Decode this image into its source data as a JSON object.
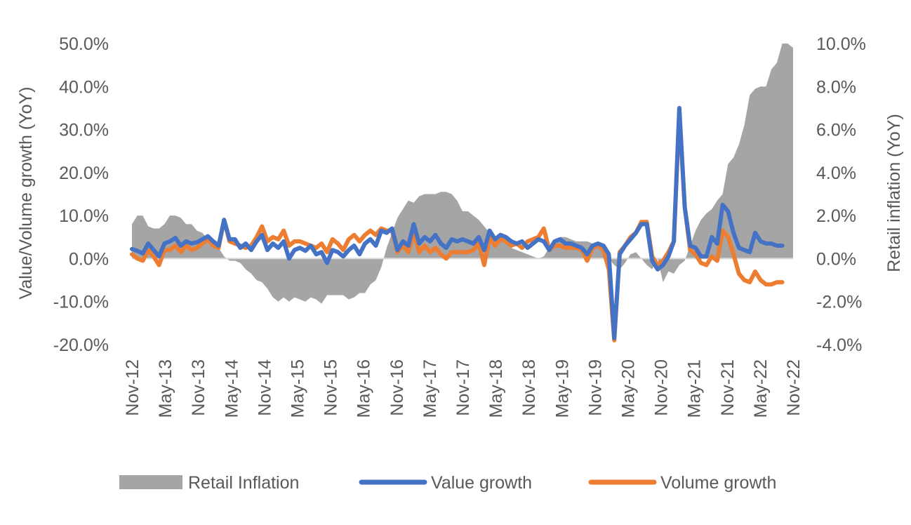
{
  "chart_data": {
    "type": "line",
    "x_labels": [
      "Nov-12",
      "May-13",
      "Nov-13",
      "May-14",
      "Nov-14",
      "May-15",
      "Nov-15",
      "May-16",
      "Nov-16",
      "May-17",
      "Nov-17",
      "May-18",
      "Nov-18",
      "May-19",
      "Nov-19",
      "May-20",
      "Nov-20",
      "May-21",
      "Nov-21",
      "May-22",
      "Nov-22"
    ],
    "y_left": {
      "label": "Value/Volume  growth (YoY)",
      "ylim": [
        -20,
        50
      ],
      "ticks": [
        "-20.0%",
        "-10.0%",
        "0.0%",
        "10.0%",
        "20.0%",
        "30.0%",
        "40.0%",
        "50.0%"
      ]
    },
    "y_right": {
      "label": "Retail inflation (YoY)",
      "ylim": [
        -4,
        10
      ],
      "ticks": [
        "-4.0%",
        "-2.0%",
        "0.0%",
        "2.0%",
        "4.0%",
        "6.0%",
        "8.0%",
        "10.0%"
      ]
    },
    "legend_position": "bottom",
    "series": [
      {
        "name": "Retail Inflation",
        "kind": "area",
        "axis": "right",
        "color": "#a5a5a5",
        "values": [
          1.6,
          2.0,
          2.0,
          1.5,
          1.4,
          1.4,
          1.6,
          2.0,
          2.0,
          1.9,
          1.6,
          1.6,
          1.3,
          1.2,
          0.9,
          0.8,
          0.5,
          0.1,
          -0.1,
          -0.1,
          -0.2,
          -0.5,
          -0.7,
          -1.0,
          -1.1,
          -1.4,
          -1.8,
          -2.0,
          -1.8,
          -2.0,
          -1.8,
          -1.9,
          -2.0,
          -1.8,
          -1.9,
          -2.1,
          -1.7,
          -1.7,
          -1.7,
          -1.7,
          -1.9,
          -1.8,
          -1.6,
          -1.6,
          -1.2,
          -1.0,
          -0.4,
          0.5,
          1.2,
          1.9,
          2.3,
          2.7,
          2.6,
          2.9,
          3.0,
          3.0,
          3.0,
          3.1,
          3.1,
          3.0,
          2.7,
          2.2,
          2.2,
          2.0,
          1.8,
          1.5,
          1.2,
          0.9,
          0.8,
          0.7,
          0.5,
          0.4,
          0.3,
          0.2,
          0.1,
          0.0,
          0.1,
          0.5,
          0.9,
          1.0,
          1.0,
          0.9,
          0.8,
          0.8,
          0.8,
          0.7,
          0.6,
          0.4,
          0.0,
          -0.3,
          -0.5,
          -0.2,
          0.2,
          0.3,
          0.0,
          -0.3,
          -0.5,
          0.0,
          -1.1,
          -0.6,
          -0.7,
          -0.3,
          -0.1,
          0.6,
          1.3,
          1.8,
          2.1,
          2.3,
          2.7,
          3.0,
          4.4,
          4.7,
          5.3,
          6.2,
          7.6,
          7.9,
          8.0,
          8.0,
          8.8,
          9.1,
          10.0,
          10.0,
          9.8
        ]
      },
      {
        "name": "Value growth",
        "kind": "line",
        "axis": "left",
        "color": "#4472c4",
        "values": [
          2.2,
          1.8,
          1.2,
          3.5,
          2.0,
          0.5,
          3.5,
          4.0,
          4.8,
          3.0,
          4.0,
          3.5,
          3.8,
          4.5,
          5.2,
          4.0,
          3.0,
          9.0,
          4.5,
          4.5,
          2.5,
          3.5,
          2.0,
          4.0,
          5.5,
          2.0,
          3.5,
          2.5,
          4.0,
          0.0,
          2.0,
          2.5,
          1.8,
          3.0,
          1.0,
          1.5,
          -1.0,
          2.0,
          1.5,
          0.5,
          2.0,
          3.0,
          1.0,
          3.5,
          4.5,
          3.0,
          6.5,
          6.0,
          7.0,
          2.0,
          4.0,
          3.0,
          8.0,
          3.5,
          5.0,
          4.0,
          5.5,
          3.5,
          2.5,
          4.5,
          4.0,
          4.5,
          4.0,
          3.5,
          5.0,
          2.0,
          6.5,
          4.5,
          5.5,
          5.0,
          4.0,
          3.5,
          4.0,
          2.5,
          3.5,
          4.5,
          4.0,
          2.0,
          4.0,
          4.5,
          3.5,
          3.5,
          3.0,
          2.5,
          1.0,
          3.0,
          3.5,
          3.0,
          1.0,
          -18.5,
          1.0,
          3.0,
          4.5,
          6.0,
          8.0,
          8.0,
          -0.5,
          -2.5,
          -1.5,
          0.5,
          4.0,
          35.0,
          12.0,
          3.0,
          2.5,
          0.5,
          0.5,
          5.0,
          3.5,
          12.5,
          11.0,
          6.0,
          2.5,
          2.0,
          1.5,
          6.0,
          4.0,
          3.5,
          3.5,
          3.0,
          3.0
        ]
      },
      {
        "name": "Volume growth",
        "kind": "line",
        "axis": "left",
        "color": "#ed7d31",
        "values": [
          1.0,
          0.0,
          -0.5,
          2.0,
          0.5,
          -1.5,
          2.0,
          2.0,
          3.0,
          1.5,
          3.0,
          2.0,
          2.5,
          3.5,
          4.5,
          3.0,
          2.5,
          9.0,
          4.0,
          3.5,
          3.0,
          2.5,
          3.0,
          5.0,
          7.5,
          4.0,
          5.0,
          4.5,
          6.5,
          3.0,
          4.0,
          4.0,
          3.5,
          3.0,
          2.5,
          3.5,
          1.5,
          4.5,
          3.5,
          2.0,
          4.5,
          5.5,
          4.0,
          5.5,
          6.5,
          5.5,
          7.0,
          6.5,
          6.5,
          1.5,
          3.0,
          1.5,
          6.0,
          1.5,
          3.0,
          1.5,
          2.5,
          1.0,
          0.0,
          1.5,
          1.5,
          1.5,
          1.5,
          2.0,
          3.5,
          -1.5,
          5.0,
          3.0,
          4.5,
          4.0,
          3.0,
          3.5,
          2.5,
          4.0,
          4.5,
          5.0,
          7.0,
          2.0,
          3.0,
          3.0,
          2.5,
          2.5,
          2.5,
          2.0,
          -0.5,
          2.5,
          3.0,
          2.0,
          -2.5,
          -19.0,
          1.5,
          3.0,
          5.0,
          6.0,
          8.5,
          8.5,
          0.5,
          -1.5,
          -0.5,
          1.5,
          4.0,
          34.0,
          12.0,
          2.0,
          1.0,
          -1.0,
          -1.5,
          0.5,
          -0.5,
          6.5,
          5.0,
          1.0,
          -3.5,
          -5.0,
          -5.5,
          -3.0,
          -5.0,
          -6.0,
          -6.0,
          -5.5,
          -5.5
        ]
      }
    ]
  }
}
